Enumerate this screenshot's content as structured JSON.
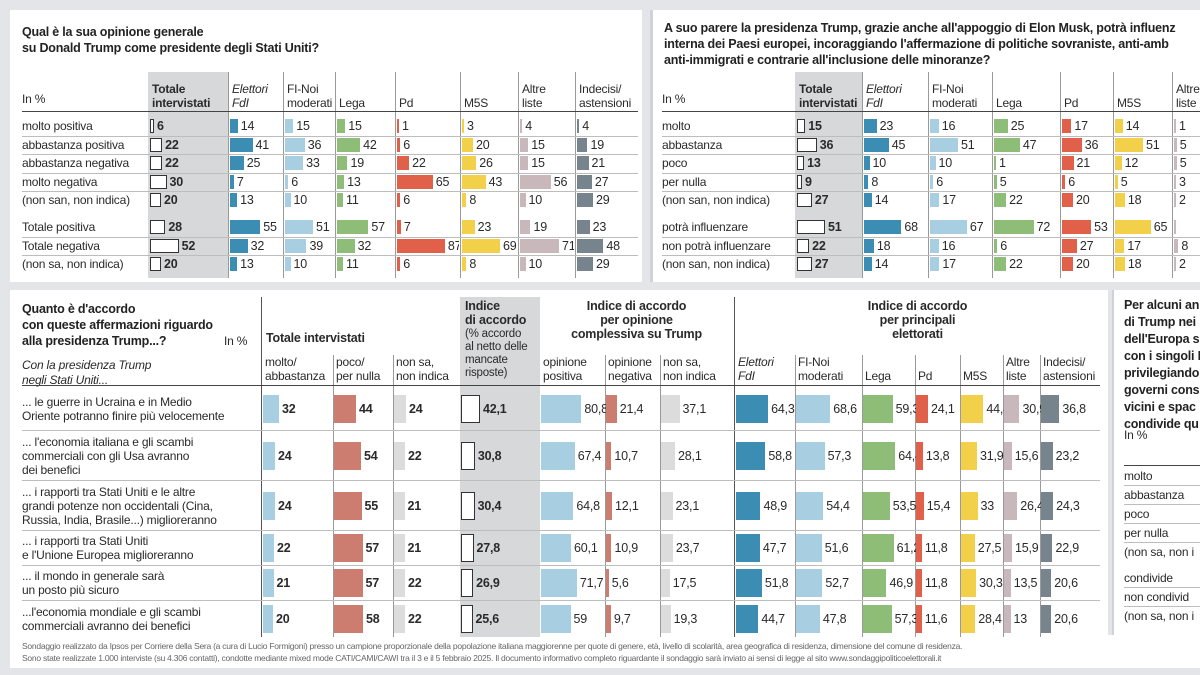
{
  "colors": {
    "fdi": "#3b8db4",
    "fi": "#a8cfe1",
    "lega": "#8dbd76",
    "pd": "#e0604a",
    "m5s": "#f2d04a",
    "altre": "#c8b8bc",
    "indecisi": "#77848e",
    "agree": "#a8cfe1",
    "disagree": "#cd7c70",
    "unknown": "#dcdcdc",
    "total_bg": "#d6d8da"
  },
  "q1": {
    "title": "Qual è la sua opinione generale\nsu Donald Trump come presidente degli Stati Uniti?",
    "unit": "In %",
    "headers": [
      "Totale\nintervistati",
      "Elettori\nFdI",
      "FI-Noi\nmoderati",
      "Lega",
      "Pd",
      "M5S",
      "Altre\nliste",
      "Indecisi/\nastensioni"
    ],
    "rows": [
      {
        "label": "molto positiva",
        "values": [
          6,
          14,
          15,
          15,
          1,
          3,
          4,
          4
        ]
      },
      {
        "label": "abbastanza positiva",
        "values": [
          22,
          41,
          36,
          42,
          6,
          20,
          15,
          19
        ]
      },
      {
        "label": "abbastanza negativa",
        "values": [
          22,
          25,
          33,
          19,
          22,
          26,
          15,
          21
        ]
      },
      {
        "label": "molto negativa",
        "values": [
          30,
          7,
          6,
          13,
          65,
          43,
          56,
          27
        ]
      },
      {
        "label": "(non san, non indica)",
        "values": [
          20,
          13,
          10,
          11,
          6,
          8,
          10,
          29
        ]
      },
      {
        "label": "Totale positiva",
        "values": [
          28,
          55,
          51,
          57,
          7,
          23,
          19,
          23
        ]
      },
      {
        "label": "Totale negativa",
        "values": [
          52,
          32,
          39,
          32,
          87,
          69,
          71,
          48
        ]
      },
      {
        "label": "(non sa, non indica)",
        "values": [
          20,
          13,
          10,
          11,
          6,
          8,
          10,
          29
        ]
      }
    ]
  },
  "q2": {
    "title": "A suo parere la presidenza Trump, grazie anche all'appoggio di Elon Musk, potrà influenz\ninterna dei Paesi europei, incoraggiando l'affermazione di politiche sovraniste, anti-amb\nanti-immigrati e contrarie all'inclusione delle minoranze?",
    "unit": "In %",
    "headers": [
      "Totale\nintervistati",
      "Elettori\nFdI",
      "FI-Noi\nmoderati",
      "Lega",
      "Pd",
      "M5S",
      "Altre\nliste"
    ],
    "rows": [
      {
        "label": "molto",
        "values": [
          15,
          23,
          16,
          25,
          17,
          14,
          "1"
        ]
      },
      {
        "label": "abbastanza",
        "values": [
          36,
          45,
          51,
          47,
          36,
          51,
          "5"
        ]
      },
      {
        "label": "poco",
        "values": [
          13,
          10,
          10,
          1,
          21,
          12,
          5
        ]
      },
      {
        "label": "per nulla",
        "values": [
          9,
          8,
          6,
          5,
          6,
          5,
          3
        ]
      },
      {
        "label": "(non san, non indica)",
        "values": [
          27,
          14,
          17,
          22,
          20,
          18,
          "2"
        ]
      },
      {
        "label": "potrà influenzare",
        "values": [
          51,
          68,
          67,
          72,
          53,
          65,
          ""
        ]
      },
      {
        "label": "non potrà influenzare",
        "values": [
          22,
          18,
          16,
          6,
          27,
          17,
          8
        ]
      },
      {
        "label": "(non san, non indica)",
        "values": [
          27,
          14,
          17,
          22,
          20,
          18,
          "2"
        ]
      }
    ]
  },
  "q3": {
    "title": "Quanto è d'accordo\ncon queste affermazioni riguardo\nalla presidenza Trump...?",
    "unit": "In %",
    "intro": "Con la presidenza Trump\nnegli Stati Uniti...",
    "group_total": "Totale intervistati",
    "index_header_bold": "Indice\ndi accordo",
    "index_header_note": "(% accordo\nal netto delle\nmancate\nrisposte)",
    "group_opinion": "Indice di accordo\nper opinione\ncomplessiva su Trump",
    "group_electorate": "Indice di accordo\nper principali\nelettorati",
    "sub_headers": [
      "molto/\nabbastanza",
      "poco/\nper nulla",
      "non sa,\nnon indica",
      "opinione\npositiva",
      "opinione\nnegativa",
      "non sa,\nnon indica",
      "Elettori\nFdI",
      "FI-Noi\nmoderati",
      "Lega",
      "Pd",
      "M5S",
      "Altre\nliste",
      "Indecisi/\nastensioni"
    ],
    "rows": [
      {
        "label": "... le guerre in Ucraina e in Medio\nOriente potranno finire più velocemente",
        "total": [
          32,
          44,
          24
        ],
        "index": "42,1",
        "opinion": [
          "80,8",
          "21,4",
          "37,1"
        ],
        "electorate": [
          "64,3",
          "68,6",
          "59,3",
          "24,1",
          "44,8",
          "30,9",
          "36,8"
        ]
      },
      {
        "label": "... l'economia italiana e gli scambi\ncommerciali con gli Usa avranno\ndei benefici",
        "total": [
          24,
          54,
          22
        ],
        "index": "30,8",
        "opinion": [
          "67,4",
          "10,7",
          "28,1"
        ],
        "electorate": [
          "58,8",
          "57,3",
          "64,4",
          "13,8",
          "31,9",
          "15,6",
          "23,2"
        ]
      },
      {
        "label": "... i rapporti tra Stati Uniti e le altre\ngrandi potenze non occidentali (Cina,\nRussia, India, Brasile...) miglioreranno",
        "total": [
          24,
          55,
          21
        ],
        "index": "30,4",
        "opinion": [
          "64,8",
          "12,1",
          "23,1"
        ],
        "electorate": [
          "48,9",
          "54,4",
          "53,5",
          "15,4",
          "33",
          "26,4",
          "24,3"
        ]
      },
      {
        "label": "... i rapporti tra Stati Uniti\ne l'Unione Europea miglioreranno",
        "total": [
          22,
          57,
          21
        ],
        "index": "27,8",
        "opinion": [
          "60,1",
          "10,9",
          "23,7"
        ],
        "electorate": [
          "47,7",
          "51,6",
          "61,2",
          "11,8",
          "27,5",
          "15,9",
          "22,9"
        ]
      },
      {
        "label": "... il mondo in generale sarà\nun posto più sicuro",
        "total": [
          21,
          57,
          22
        ],
        "index": "26,9",
        "opinion": [
          "71,7",
          "5,6",
          "17,5"
        ],
        "electorate": [
          "51,8",
          "52,7",
          "46,9",
          "11,8",
          "30,3",
          "13,5",
          "20,6"
        ]
      },
      {
        "label": "...l'economia mondiale e gli scambi\ncommerciali avranno dei benefici",
        "total": [
          20,
          58,
          22
        ],
        "index": "25,6",
        "opinion": [
          "59",
          "9,7",
          "19,3"
        ],
        "electorate": [
          "44,7",
          "47,8",
          "57,3",
          "11,6",
          "28,4",
          "13",
          "20,6"
        ]
      }
    ]
  },
  "q4": {
    "title": "Per alcuni an\ndi Trump nei\ndell'Europa s\ncon i singoli I\nprivilegiando\ngoverni cons\nvicini e spac\ncondivide qu",
    "unit": "In %",
    "rows": [
      "molto",
      "abbastanza",
      "poco",
      "per nulla",
      "(non sa, non i",
      "condivide",
      "non condivid",
      "(non sa, non i"
    ]
  },
  "footer": "Sondaggio realizzato da Ipsos per Corriere della Sera (a cura di Lucio Formigoni) presso un campione proporzionale della popolazione italiana maggiorenne per quote di genere, età, livello di scolarità, area geografica di residenza, dimensione del comune di residenza.\nSono state realizzate 1.000 interviste (su 4.306 contatti), condotte mediante mixed mode CATI/CAMI/CAWI tra il 3 e il 5 febbraio 2025. Il documento informativo completo riguardante il sondaggio sarà inviato ai sensi di legge al sito www.sondaggipoliticoelettorali.it"
}
